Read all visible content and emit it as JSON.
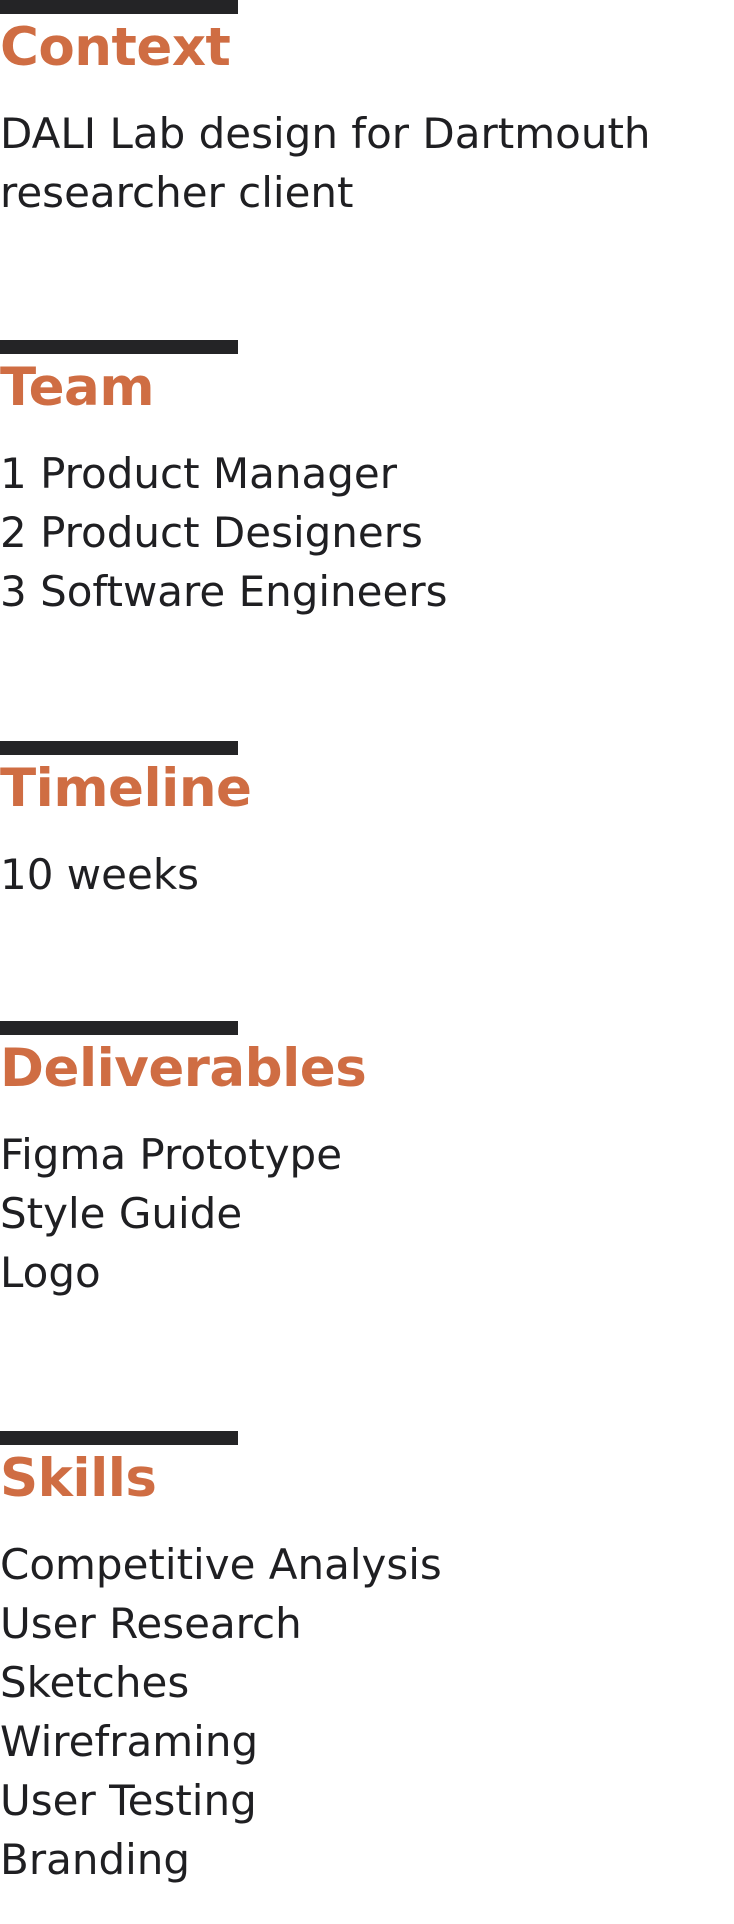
{
  "colors": {
    "accent": "#cf6d43",
    "rule": "#242426",
    "text": "#1f1f22",
    "background": "#ffffff"
  },
  "sections": {
    "context": {
      "heading": "Context",
      "lines": [
        "DALI Lab design for Dartmouth",
        "researcher client"
      ]
    },
    "team": {
      "heading": "Team",
      "lines": [
        "1 Product Manager",
        "2 Product Designers",
        "3 Software Engineers"
      ]
    },
    "timeline": {
      "heading": "Timeline",
      "lines": [
        "10 weeks"
      ]
    },
    "deliverables": {
      "heading": "Deliverables",
      "lines": [
        "Figma Prototype",
        "Style Guide",
        "Logo"
      ]
    },
    "skills": {
      "heading": "Skills",
      "lines": [
        "Competitive Analysis",
        "User Research",
        "Sketches",
        "Wireframing",
        "User Testing",
        "Branding"
      ]
    }
  }
}
